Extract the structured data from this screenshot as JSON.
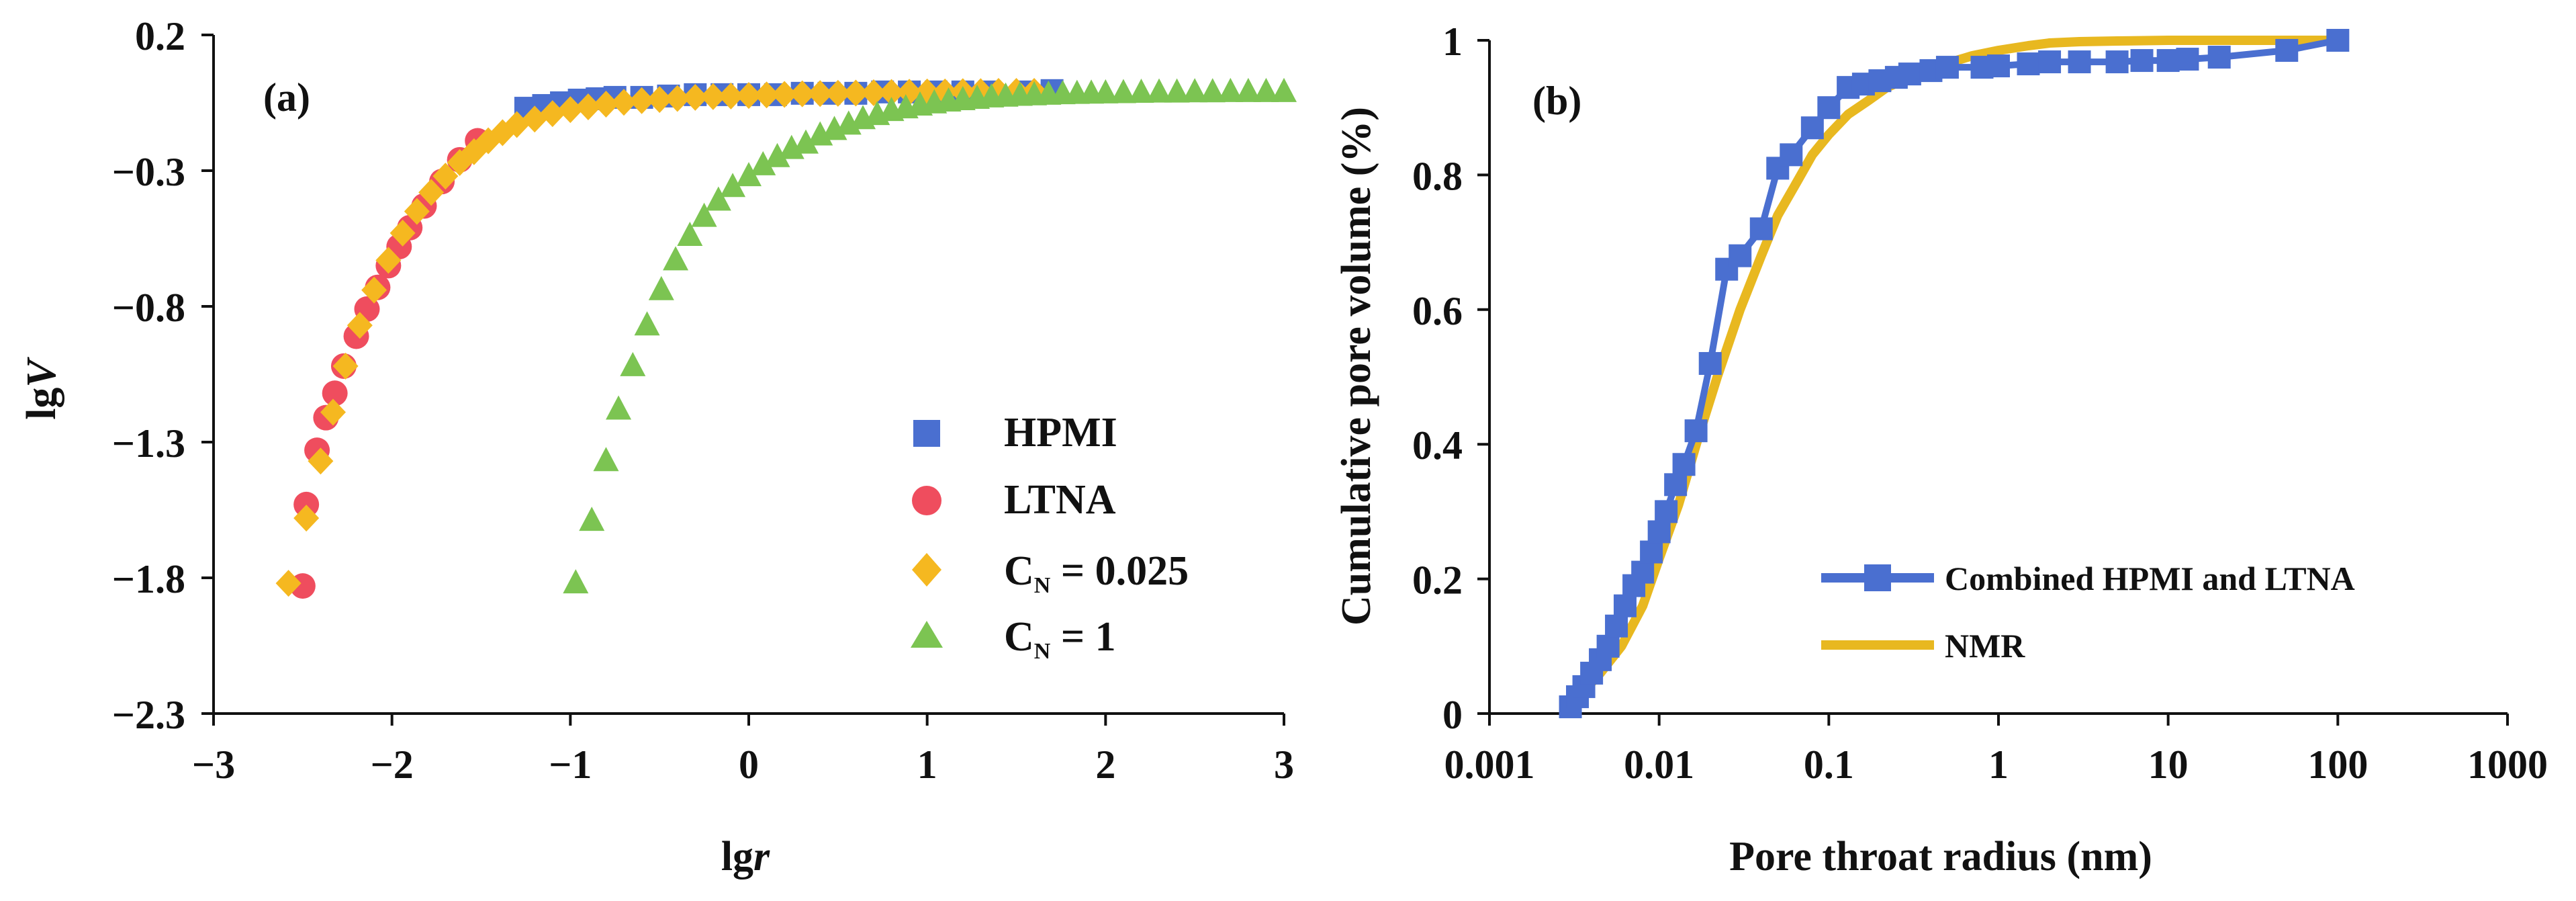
{
  "colors": {
    "hpmi": "#4a6fd0",
    "ltna": "#ef4d5e",
    "cn0025": "#f5b820",
    "cn1": "#7cc452",
    "combined": "#4a6fd0",
    "nmr": "#e8b820",
    "axis": "#111111"
  },
  "chart_data": [
    {
      "type": "scatter",
      "panel_label": "(a)",
      "xlabel": "lgr",
      "xlabel_main": "lg",
      "xlabel_var": "r",
      "ylabel": "lgV",
      "ylabel_main": "lg",
      "ylabel_var": "V",
      "xlim": [
        -3,
        3
      ],
      "ylim": [
        -2.3,
        0.2
      ],
      "xticks": [
        -3,
        -2,
        -1,
        0,
        1,
        2,
        3
      ],
      "xtick_labels": [
        "−3",
        "−2",
        "−1",
        "0",
        "1",
        "2",
        "3"
      ],
      "yticks": [
        0.2,
        -0.3,
        -0.8,
        -1.3,
        -1.8,
        -2.3
      ],
      "ytick_labels": [
        "0.2",
        "−0.3",
        "−0.8",
        "−1.3",
        "−1.8",
        "−2.3"
      ],
      "legend_position": "lower-right",
      "series": [
        {
          "name": "HPMI",
          "legend_label": "HPMI",
          "marker": "square",
          "color_key": "hpmi",
          "points": [
            [
              -1.25,
              -0.07
            ],
            [
              -1.15,
              -0.06
            ],
            [
              -1.05,
              -0.05
            ],
            [
              -0.95,
              -0.04
            ],
            [
              -0.85,
              -0.035
            ],
            [
              -0.75,
              -0.03
            ],
            [
              -0.6,
              -0.03
            ],
            [
              -0.45,
              -0.025
            ],
            [
              -0.3,
              -0.02
            ],
            [
              -0.15,
              -0.02
            ],
            [
              0.0,
              -0.02
            ],
            [
              0.15,
              -0.02
            ],
            [
              0.3,
              -0.015
            ],
            [
              0.45,
              -0.015
            ],
            [
              0.6,
              -0.015
            ],
            [
              0.75,
              -0.01
            ],
            [
              0.9,
              -0.01
            ],
            [
              1.05,
              -0.01
            ],
            [
              1.2,
              -0.01
            ],
            [
              1.35,
              -0.01
            ],
            [
              1.55,
              -0.01
            ],
            [
              1.7,
              -0.005
            ]
          ]
        },
        {
          "name": "LTNA",
          "legend_label": "LTNA",
          "marker": "circle",
          "color_key": "ltna",
          "points": [
            [
              -2.5,
              -1.83
            ],
            [
              -2.48,
              -1.53
            ],
            [
              -2.42,
              -1.33
            ],
            [
              -2.37,
              -1.21
            ],
            [
              -2.32,
              -1.12
            ],
            [
              -2.27,
              -1.02
            ],
            [
              -2.2,
              -0.91
            ],
            [
              -2.14,
              -0.81
            ],
            [
              -2.08,
              -0.73
            ],
            [
              -2.02,
              -0.65
            ],
            [
              -1.96,
              -0.58
            ],
            [
              -1.9,
              -0.51
            ],
            [
              -1.82,
              -0.43
            ],
            [
              -1.72,
              -0.34
            ],
            [
              -1.62,
              -0.26
            ],
            [
              -1.52,
              -0.19
            ]
          ]
        },
        {
          "name": "C_N = 0.025",
          "legend_label": "C",
          "legend_sub": "N",
          "legend_suffix": " = 0.025",
          "marker": "diamond",
          "color_key": "cn0025",
          "points": [
            [
              -2.58,
              -1.82
            ],
            [
              -2.48,
              -1.58
            ],
            [
              -2.4,
              -1.37
            ],
            [
              -2.33,
              -1.19
            ],
            [
              -2.26,
              -1.02
            ],
            [
              -2.18,
              -0.87
            ],
            [
              -2.1,
              -0.74
            ],
            [
              -2.02,
              -0.63
            ],
            [
              -1.94,
              -0.53
            ],
            [
              -1.86,
              -0.45
            ],
            [
              -1.78,
              -0.38
            ],
            [
              -1.7,
              -0.32
            ],
            [
              -1.62,
              -0.27
            ],
            [
              -1.54,
              -0.23
            ],
            [
              -1.46,
              -0.19
            ],
            [
              -1.38,
              -0.16
            ],
            [
              -1.3,
              -0.13
            ],
            [
              -1.2,
              -0.11
            ],
            [
              -1.1,
              -0.09
            ],
            [
              -1.0,
              -0.075
            ],
            [
              -0.9,
              -0.065
            ],
            [
              -0.8,
              -0.055
            ],
            [
              -0.7,
              -0.048
            ],
            [
              -0.6,
              -0.042
            ],
            [
              -0.5,
              -0.038
            ],
            [
              -0.4,
              -0.034
            ],
            [
              -0.3,
              -0.03
            ],
            [
              -0.2,
              -0.027
            ],
            [
              -0.1,
              -0.025
            ],
            [
              0.0,
              -0.023
            ],
            [
              0.1,
              -0.021
            ],
            [
              0.2,
              -0.019
            ],
            [
              0.3,
              -0.017
            ],
            [
              0.4,
              -0.016
            ],
            [
              0.5,
              -0.015
            ],
            [
              0.6,
              -0.014
            ],
            [
              0.7,
              -0.013
            ],
            [
              0.8,
              -0.012
            ],
            [
              0.9,
              -0.011
            ],
            [
              1.0,
              -0.01
            ],
            [
              1.1,
              -0.01
            ],
            [
              1.2,
              -0.009
            ],
            [
              1.3,
              -0.009
            ],
            [
              1.4,
              -0.008
            ],
            [
              1.5,
              -0.008
            ],
            [
              1.6,
              -0.008
            ]
          ]
        },
        {
          "name": "C_N = 1",
          "legend_label": "C",
          "legend_sub": "N",
          "legend_suffix": " = 1",
          "marker": "triangle",
          "color_key": "cn1",
          "points": [
            [
              -0.97,
              -1.82
            ],
            [
              -0.88,
              -1.59
            ],
            [
              -0.8,
              -1.37
            ],
            [
              -0.73,
              -1.18
            ],
            [
              -0.65,
              -1.02
            ],
            [
              -0.57,
              -0.87
            ],
            [
              -0.49,
              -0.74
            ],
            [
              -0.41,
              -0.63
            ],
            [
              -0.33,
              -0.54
            ],
            [
              -0.25,
              -0.47
            ],
            [
              -0.17,
              -0.41
            ],
            [
              -0.09,
              -0.36
            ],
            [
              0.0,
              -0.32
            ],
            [
              0.08,
              -0.28
            ],
            [
              0.16,
              -0.25
            ],
            [
              0.24,
              -0.22
            ],
            [
              0.32,
              -0.2
            ],
            [
              0.4,
              -0.17
            ],
            [
              0.48,
              -0.15
            ],
            [
              0.56,
              -0.13
            ],
            [
              0.64,
              -0.11
            ],
            [
              0.72,
              -0.095
            ],
            [
              0.8,
              -0.08
            ],
            [
              0.88,
              -0.07
            ],
            [
              0.96,
              -0.06
            ],
            [
              1.04,
              -0.052
            ],
            [
              1.12,
              -0.045
            ],
            [
              1.2,
              -0.04
            ],
            [
              1.28,
              -0.035
            ],
            [
              1.36,
              -0.03
            ],
            [
              1.44,
              -0.027
            ],
            [
              1.52,
              -0.024
            ],
            [
              1.6,
              -0.022
            ],
            [
              1.68,
              -0.02
            ],
            [
              1.76,
              -0.018
            ],
            [
              1.84,
              -0.017
            ],
            [
              1.92,
              -0.016
            ],
            [
              2.0,
              -0.015
            ],
            [
              2.1,
              -0.014
            ],
            [
              2.2,
              -0.013
            ],
            [
              2.3,
              -0.012
            ],
            [
              2.4,
              -0.012
            ],
            [
              2.5,
              -0.011
            ],
            [
              2.6,
              -0.011
            ],
            [
              2.7,
              -0.01
            ],
            [
              2.8,
              -0.01
            ],
            [
              2.9,
              -0.01
            ],
            [
              3.0,
              -0.01
            ]
          ]
        }
      ]
    },
    {
      "type": "line",
      "panel_label": "(b)",
      "xlabel": "Pore throat radius (nm)",
      "ylabel": "Cumulative pore volume (%)",
      "x_scale": "log",
      "xlim": [
        0.001,
        1000
      ],
      "ylim": [
        0,
        1
      ],
      "xticks": [
        0.001,
        0.01,
        0.1,
        1,
        10,
        100,
        1000
      ],
      "xtick_labels": [
        "0.001",
        "0.01",
        "0.1",
        "1",
        "10",
        "100",
        "1000"
      ],
      "yticks": [
        0,
        0.2,
        0.4,
        0.6,
        0.8,
        1
      ],
      "ytick_labels": [
        "0",
        "0.2",
        "0.4",
        "0.6",
        "0.8",
        "1"
      ],
      "legend_position": "lower-right",
      "series": [
        {
          "name": "Combined HPMI and LTNA",
          "marker": "square",
          "color_key": "combined",
          "x": [
            0.003,
            0.0033,
            0.0036,
            0.004,
            0.0045,
            0.005,
            0.0056,
            0.0063,
            0.0071,
            0.008,
            0.009,
            0.01,
            0.011,
            0.0125,
            0.014,
            0.0165,
            0.02,
            0.025,
            0.03,
            0.04,
            0.05,
            0.06,
            0.08,
            0.1,
            0.13,
            0.16,
            0.2,
            0.25,
            0.3,
            0.4,
            0.5,
            0.8,
            1,
            1.5,
            2,
            3,
            5,
            7,
            10,
            13,
            20,
            50,
            100
          ],
          "values": [
            0.01,
            0.025,
            0.04,
            0.06,
            0.08,
            0.1,
            0.13,
            0.16,
            0.19,
            0.21,
            0.24,
            0.27,
            0.3,
            0.34,
            0.37,
            0.42,
            0.52,
            0.66,
            0.68,
            0.72,
            0.81,
            0.83,
            0.87,
            0.9,
            0.93,
            0.935,
            0.94,
            0.945,
            0.95,
            0.955,
            0.96,
            0.96,
            0.962,
            0.965,
            0.968,
            0.968,
            0.968,
            0.97,
            0.97,
            0.972,
            0.975,
            0.985,
            1.0
          ]
        },
        {
          "name": "NMR",
          "marker": "none",
          "color_key": "nmr",
          "x": [
            0.0028,
            0.0035,
            0.0045,
            0.006,
            0.008,
            0.01,
            0.013,
            0.017,
            0.022,
            0.03,
            0.04,
            0.05,
            0.065,
            0.08,
            0.1,
            0.13,
            0.17,
            0.22,
            0.3,
            0.4,
            0.5,
            0.7,
            1,
            1.5,
            2,
            3,
            5,
            10,
            20,
            50,
            100
          ],
          "values": [
            0.01,
            0.03,
            0.06,
            0.1,
            0.16,
            0.23,
            0.31,
            0.41,
            0.5,
            0.6,
            0.68,
            0.74,
            0.79,
            0.83,
            0.86,
            0.89,
            0.91,
            0.93,
            0.945,
            0.958,
            0.966,
            0.977,
            0.985,
            0.992,
            0.996,
            0.998,
            0.999,
            1.0,
            1.0,
            1.0,
            1.0
          ]
        }
      ]
    }
  ]
}
